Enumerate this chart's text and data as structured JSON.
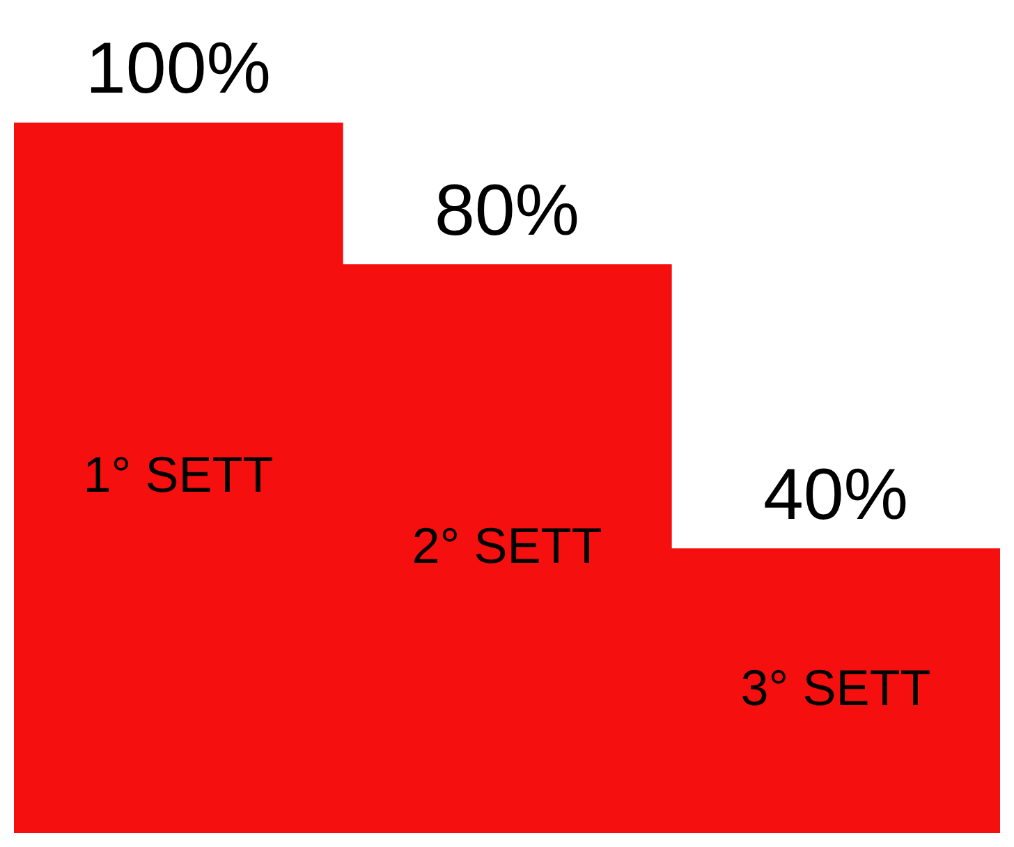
{
  "chart_data": {
    "type": "bar",
    "categories": [
      "1° SETT",
      "2° SETT",
      "3° SETT"
    ],
    "values": [
      100,
      80,
      40
    ],
    "value_labels": [
      "100%",
      "80%",
      "40%"
    ],
    "color": "#f50f0f",
    "tick_labels": false
  }
}
